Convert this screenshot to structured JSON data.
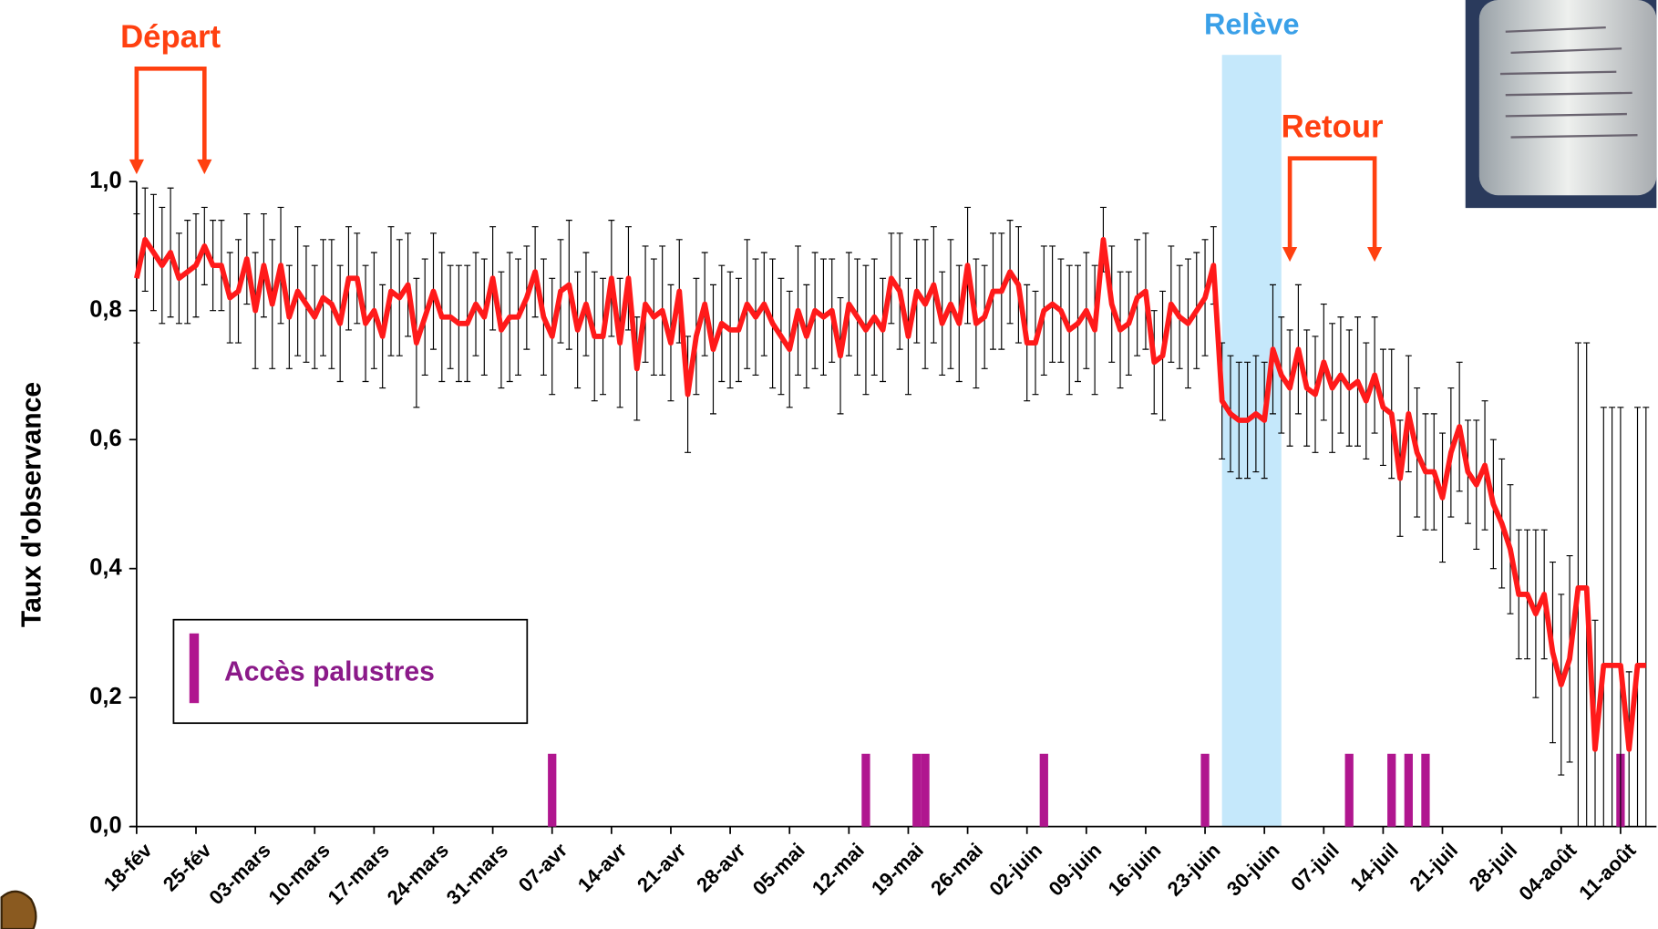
{
  "chart_data": {
    "type": "line",
    "ylabel": "Taux d'observance",
    "ylim": [
      0,
      1
    ],
    "yticks": [
      {
        "value": 0,
        "label": "0,0"
      },
      {
        "value": 0.2,
        "label": "0,2"
      },
      {
        "value": 0.4,
        "label": "0,4"
      },
      {
        "value": 0.6,
        "label": "0,6"
      },
      {
        "value": 0.8,
        "label": "0,8"
      },
      {
        "value": 1,
        "label": "1,0"
      }
    ],
    "categories": [
      "18-fév",
      null,
      null,
      null,
      null,
      null,
      null,
      "25-fév",
      null,
      null,
      null,
      null,
      null,
      null,
      "03-mars",
      null,
      null,
      null,
      null,
      null,
      null,
      "10-mars",
      null,
      null,
      null,
      null,
      null,
      null,
      "17-mars",
      null,
      null,
      null,
      null,
      null,
      null,
      "24-mars",
      null,
      null,
      null,
      null,
      null,
      null,
      "31-mars",
      null,
      null,
      null,
      null,
      null,
      null,
      "07-avr",
      null,
      null,
      null,
      null,
      null,
      null,
      "14-avr",
      null,
      null,
      null,
      null,
      null,
      null,
      "21-avr",
      null,
      null,
      null,
      null,
      null,
      null,
      "28-avr",
      null,
      null,
      null,
      null,
      null,
      null,
      "05-mai",
      null,
      null,
      null,
      null,
      null,
      null,
      "12-mai",
      null,
      null,
      null,
      null,
      null,
      null,
      "19-mai",
      null,
      null,
      null,
      null,
      null,
      null,
      "26-mai",
      null,
      null,
      null,
      null,
      null,
      null,
      "02-juin",
      null,
      null,
      null,
      null,
      null,
      null,
      "09-juin",
      null,
      null,
      null,
      null,
      null,
      null,
      "16-juin",
      null,
      null,
      null,
      null,
      null,
      null,
      "23-juin",
      null,
      null,
      null,
      null,
      null,
      null,
      "30-juin",
      null,
      null,
      null,
      null,
      null,
      null,
      "07-juil",
      null,
      null,
      null,
      null,
      null,
      null,
      "14-juil",
      null,
      null,
      null,
      null,
      null,
      null,
      "21-juil",
      null,
      null,
      null,
      null,
      null,
      null,
      "28-juil",
      null,
      null,
      null,
      null,
      null,
      null,
      "04-août",
      null,
      null,
      null,
      null,
      null,
      null,
      "11-août",
      null,
      null,
      null
    ],
    "series": [
      {
        "color": "#ff1a1a",
        "values": [
          0.85,
          0.91,
          0.89,
          0.87,
          0.89,
          0.85,
          0.86,
          0.87,
          0.9,
          0.87,
          0.87,
          0.82,
          0.83,
          0.88,
          0.8,
          0.87,
          0.81,
          0.87,
          0.79,
          0.83,
          0.81,
          0.79,
          0.82,
          0.81,
          0.78,
          0.85,
          0.85,
          0.78,
          0.8,
          0.76,
          0.83,
          0.82,
          0.84,
          0.75,
          0.79,
          0.83,
          0.79,
          0.79,
          0.78,
          0.78,
          0.81,
          0.79,
          0.85,
          0.77,
          0.79,
          0.79,
          0.82,
          0.86,
          0.79,
          0.76,
          0.83,
          0.84,
          0.77,
          0.81,
          0.76,
          0.76,
          0.85,
          0.75,
          0.85,
          0.71,
          0.81,
          0.79,
          0.8,
          0.75,
          0.83,
          0.67,
          0.76,
          0.81,
          0.74,
          0.78,
          0.77,
          0.77,
          0.81,
          0.79,
          0.81,
          0.78,
          0.76,
          0.74,
          0.8,
          0.76,
          0.8,
          0.79,
          0.8,
          0.73,
          0.81,
          0.79,
          0.77,
          0.79,
          0.77,
          0.85,
          0.83,
          0.76,
          0.83,
          0.81,
          0.84,
          0.78,
          0.81,
          0.78,
          0.87,
          0.78,
          0.79,
          0.83,
          0.83,
          0.86,
          0.84,
          0.75,
          0.75,
          0.8,
          0.81,
          0.8,
          0.77,
          0.78,
          0.8,
          0.77,
          0.91,
          0.81,
          0.77,
          0.78,
          0.82,
          0.83,
          0.72,
          0.73,
          0.81,
          0.79,
          0.78,
          0.8,
          0.82,
          0.87,
          0.66,
          0.64,
          0.63,
          0.63,
          0.64,
          0.63,
          0.74,
          0.7,
          0.68,
          0.74,
          0.68,
          0.67,
          0.72,
          0.68,
          0.7,
          0.68,
          0.69,
          0.66,
          0.7,
          0.65,
          0.64,
          0.54,
          0.64,
          0.58,
          0.55,
          0.55,
          0.51,
          0.58,
          0.62,
          0.55,
          0.53,
          0.56,
          0.5,
          0.47,
          0.43,
          0.36,
          0.36,
          0.33,
          0.36,
          0.27,
          0.22,
          0.26,
          0.37,
          0.37,
          0.12,
          0.25,
          0.25,
          0.25,
          0.12,
          0.25,
          0.25
        ],
        "errors": [
          0.1,
          0.08,
          0.09,
          0.09,
          0.1,
          0.07,
          0.08,
          0.08,
          0.06,
          0.07,
          0.07,
          0.07,
          0.08,
          0.07,
          0.09,
          0.08,
          0.1,
          0.09,
          0.08,
          0.1,
          0.09,
          0.08,
          0.09,
          0.1,
          0.09,
          0.08,
          0.07,
          0.09,
          0.09,
          0.08,
          0.1,
          0.09,
          0.08,
          0.1,
          0.09,
          0.09,
          0.1,
          0.08,
          0.09,
          0.09,
          0.08,
          0.09,
          0.08,
          0.09,
          0.1,
          0.09,
          0.08,
          0.07,
          0.09,
          0.09,
          0.08,
          0.1,
          0.09,
          0.08,
          0.1,
          0.09,
          0.09,
          0.1,
          0.08,
          0.08,
          0.09,
          0.09,
          0.1,
          0.09,
          0.08,
          0.09,
          0.09,
          0.08,
          0.1,
          0.09,
          0.09,
          0.08,
          0.1,
          0.09,
          0.08,
          0.1,
          0.09,
          0.09,
          0.1,
          0.08,
          0.09,
          0.09,
          0.08,
          0.09,
          0.08,
          0.09,
          0.1,
          0.09,
          0.08,
          0.07,
          0.09,
          0.09,
          0.08,
          0.1,
          0.09,
          0.08,
          0.1,
          0.09,
          0.09,
          0.1,
          0.08,
          0.09,
          0.09,
          0.08,
          0.09,
          0.09,
          0.08,
          0.1,
          0.09,
          0.08,
          0.1,
          0.09,
          0.09,
          0.1,
          0.05,
          0.09,
          0.09,
          0.08,
          0.09,
          0.09,
          0.08,
          0.1,
          0.09,
          0.08,
          0.1,
          0.09,
          0.09,
          0.06,
          0.09,
          0.09,
          0.09,
          0.09,
          0.09,
          0.09,
          0.1,
          0.09,
          0.09,
          0.1,
          0.09,
          0.09,
          0.09,
          0.1,
          0.09,
          0.09,
          0.1,
          0.09,
          0.09,
          0.09,
          0.1,
          0.09,
          0.09,
          0.1,
          0.09,
          0.09,
          0.1,
          0.1,
          0.1,
          0.08,
          0.1,
          0.1,
          0.1,
          0.1,
          0.1,
          0.1,
          0.1,
          0.13,
          0.1,
          0.14,
          0.14,
          0.16,
          0.38,
          0.38,
          0.2,
          0.4,
          0.4,
          0.4,
          0.12,
          0.4,
          0.4
        ]
      }
    ],
    "events": {
      "name": "Accès palustres",
      "color": "#b0168f",
      "at": [
        49,
        86,
        92,
        93,
        107,
        126,
        143,
        148,
        150,
        152,
        175
      ]
    },
    "highlight": {
      "label": "Relève",
      "color": "#3aa0e8",
      "from": 128,
      "to": 135
    },
    "annotations": [
      {
        "text": "Départ",
        "from": 0,
        "to": 8,
        "color": "#ff4010"
      },
      {
        "text": "Retour",
        "from": 136,
        "to": 146,
        "color": "#ff4010"
      }
    ]
  }
}
